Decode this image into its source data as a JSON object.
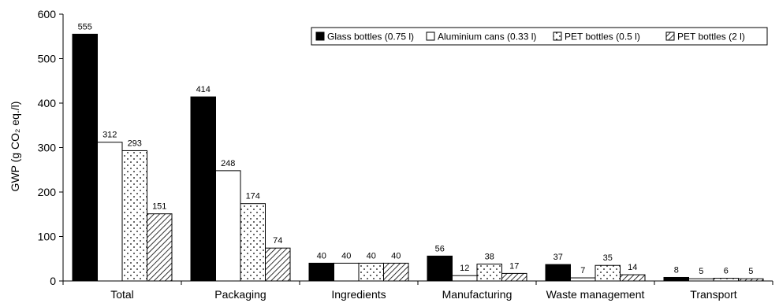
{
  "chart_data": {
    "type": "bar",
    "ylabel": "GWP (g CO₂ eq./l)",
    "ylim": [
      0,
      600
    ],
    "yticks": [
      0,
      100,
      200,
      300,
      400,
      500,
      600
    ],
    "categories": [
      "Total",
      "Packaging",
      "Ingredients",
      "Manufacturing",
      "Waste management",
      "Transport"
    ],
    "legend_position": "top-right",
    "series": [
      {
        "name": "Glass bottles (0.75 l)",
        "pattern": "solid-black",
        "values": [
          555,
          414,
          40,
          56,
          37,
          8
        ]
      },
      {
        "name": "Aluminium cans (0.33 l)",
        "pattern": "white",
        "values": [
          312,
          248,
          40,
          12,
          7,
          5
        ]
      },
      {
        "name": "PET bottles (0.5 l)",
        "pattern": "dots",
        "values": [
          293,
          174,
          40,
          38,
          35,
          6
        ]
      },
      {
        "name": "PET bottles (2 l)",
        "pattern": "diagonal-hatch",
        "values": [
          151,
          74,
          40,
          17,
          14,
          5
        ]
      }
    ]
  }
}
